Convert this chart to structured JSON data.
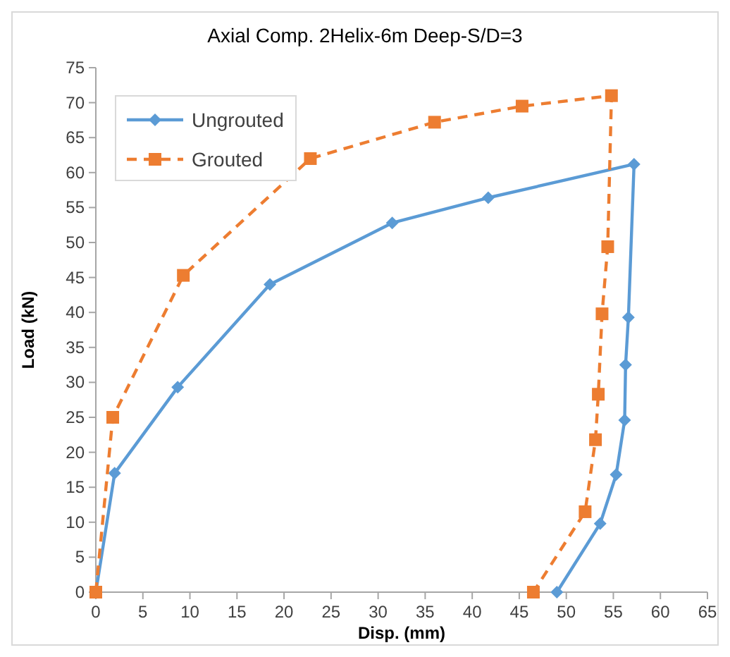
{
  "chart_data": {
    "type": "line",
    "title": "Axial Comp. 2Helix-6m Deep-S/D=3",
    "xlabel": "Disp. (mm)",
    "ylabel": "Load (kN)",
    "xlim": [
      0,
      65
    ],
    "xticks": [
      0,
      5,
      10,
      15,
      20,
      25,
      30,
      35,
      40,
      45,
      50,
      55,
      60,
      65
    ],
    "ylim": [
      0,
      75
    ],
    "yticks": [
      0,
      5,
      10,
      15,
      20,
      25,
      30,
      35,
      40,
      45,
      50,
      55,
      60,
      65,
      70,
      75
    ],
    "grid": false,
    "legend": "top left",
    "series": [
      {
        "name": "Ungrouted",
        "color": "#5b9bd5",
        "marker": "diamond",
        "line_style": "solid",
        "x": [
          0,
          2,
          8.7,
          18.5,
          31.5,
          41.7,
          57.2,
          56.6,
          56.3,
          56.2,
          55.3,
          53.6,
          49
        ],
        "values": [
          0,
          17,
          29.3,
          44,
          52.8,
          56.4,
          61.2,
          39.3,
          32.5,
          24.6,
          16.8,
          9.8,
          0
        ]
      },
      {
        "name": "Grouted",
        "color": "#ed7d31",
        "marker": "square",
        "line_style": "dashed",
        "x": [
          0,
          1.8,
          9.3,
          22.8,
          36,
          45.3,
          54.8,
          54.4,
          53.8,
          53.4,
          53.1,
          52,
          46.5
        ],
        "values": [
          0,
          25,
          45.3,
          62,
          67.2,
          69.5,
          71,
          49.4,
          39.8,
          28.3,
          21.8,
          11.5,
          0
        ]
      }
    ]
  }
}
